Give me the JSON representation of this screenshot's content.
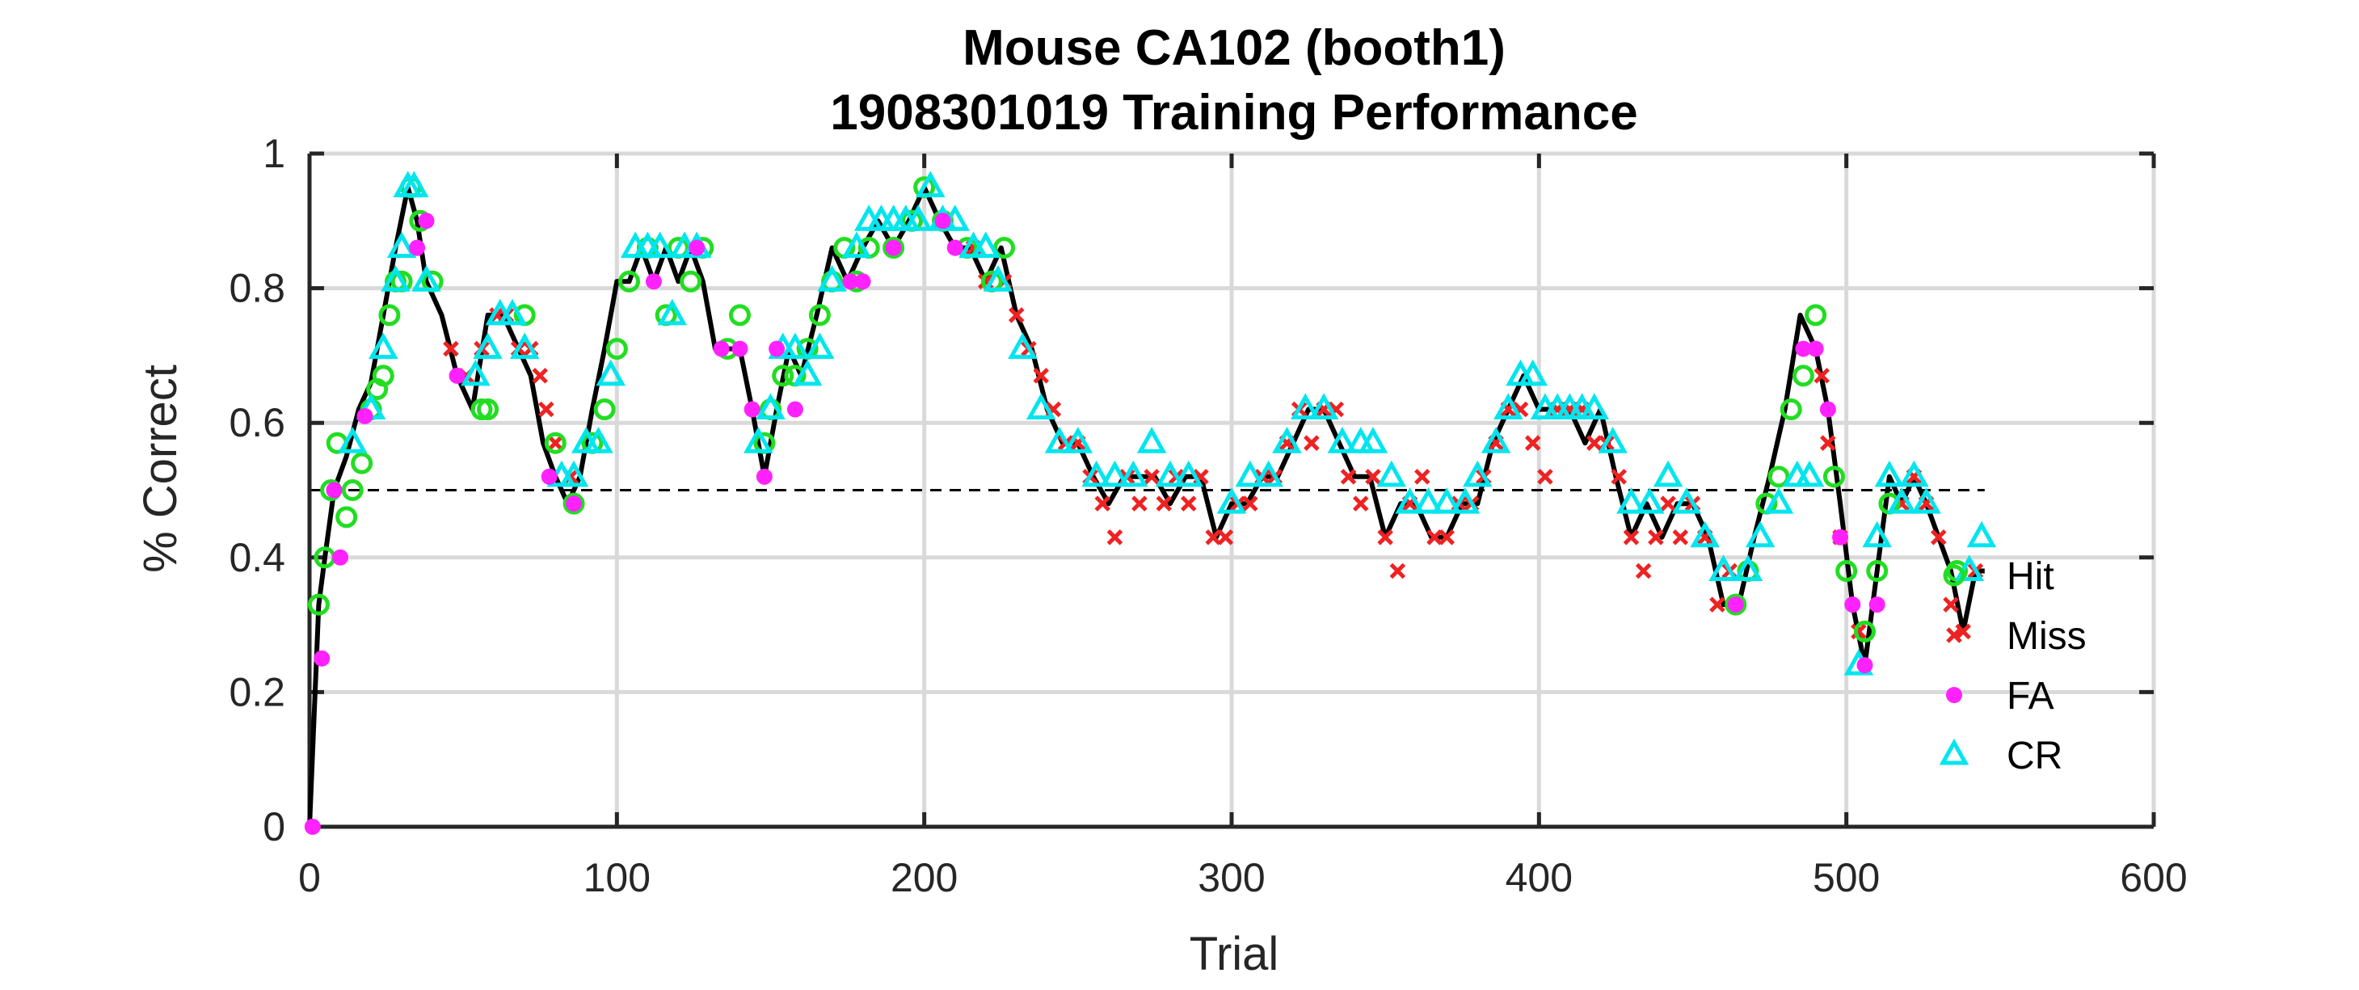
{
  "chart_data": {
    "type": "line",
    "title_lines": [
      "Mouse CA102 (booth1)",
      "1908301019 Training Performance"
    ],
    "xlabel": "Trial",
    "ylabel": "% Correct",
    "xlim": [
      0,
      600
    ],
    "ylim": [
      0,
      1
    ],
    "xticks": [
      0,
      100,
      200,
      300,
      400,
      500,
      600
    ],
    "yticks": [
      0,
      0.2,
      0.4,
      0.6,
      0.8,
      1
    ],
    "xtick_labels": [
      "0",
      "100",
      "200",
      "300",
      "400",
      "500",
      "600"
    ],
    "ytick_labels": [
      "0",
      "0.2",
      "0.4",
      "0.6",
      "0.8",
      "1"
    ],
    "grid": true,
    "reference_line": {
      "y": 0.5,
      "x_range": [
        0,
        545
      ],
      "style": "dashed"
    },
    "legend": {
      "placement": "right",
      "entries": [
        "Hit",
        "Miss",
        "FA",
        "CR"
      ]
    },
    "colors": {
      "line": "#000000",
      "Hit": "#22dd22",
      "Miss": "#ee2222",
      "FA": "#ff22ff",
      "CR": "#00e5ee",
      "grid": "#d9d9d9",
      "axis": "#262626"
    },
    "curve": {
      "x": [
        0,
        3,
        5,
        8,
        12,
        16,
        20,
        24,
        28,
        32,
        35,
        38,
        43,
        48,
        53,
        58,
        63,
        68,
        72,
        76,
        80,
        84,
        88,
        92,
        96,
        100,
        104,
        108,
        112,
        116,
        120,
        124,
        128,
        132,
        136,
        140,
        144,
        148,
        152,
        156,
        160,
        165,
        170,
        175,
        180,
        185,
        190,
        195,
        200,
        205,
        210,
        215,
        220,
        225,
        230,
        235,
        240,
        245,
        250,
        255,
        260,
        265,
        270,
        275,
        280,
        285,
        290,
        295,
        300,
        305,
        310,
        315,
        320,
        325,
        330,
        335,
        340,
        345,
        350,
        355,
        360,
        365,
        370,
        375,
        380,
        385,
        390,
        395,
        400,
        405,
        410,
        415,
        420,
        425,
        430,
        435,
        440,
        445,
        450,
        455,
        460,
        465,
        470,
        475,
        480,
        485,
        490,
        494,
        498,
        502,
        506,
        510,
        514,
        518,
        522,
        526,
        530,
        534,
        538,
        542,
        545
      ],
      "y": [
        0,
        0.33,
        0.4,
        0.5,
        0.55,
        0.62,
        0.66,
        0.76,
        0.86,
        0.95,
        0.9,
        0.81,
        0.76,
        0.67,
        0.62,
        0.76,
        0.76,
        0.71,
        0.67,
        0.57,
        0.52,
        0.48,
        0.52,
        0.62,
        0.71,
        0.81,
        0.81,
        0.86,
        0.81,
        0.86,
        0.81,
        0.86,
        0.81,
        0.71,
        0.71,
        0.71,
        0.62,
        0.52,
        0.62,
        0.71,
        0.67,
        0.76,
        0.86,
        0.81,
        0.86,
        0.9,
        0.86,
        0.9,
        0.95,
        0.9,
        0.86,
        0.86,
        0.81,
        0.86,
        0.76,
        0.71,
        0.62,
        0.57,
        0.57,
        0.52,
        0.48,
        0.52,
        0.52,
        0.52,
        0.48,
        0.52,
        0.52,
        0.43,
        0.48,
        0.48,
        0.52,
        0.52,
        0.57,
        0.62,
        0.62,
        0.57,
        0.52,
        0.52,
        0.43,
        0.48,
        0.48,
        0.43,
        0.43,
        0.48,
        0.48,
        0.57,
        0.62,
        0.67,
        0.62,
        0.62,
        0.62,
        0.57,
        0.62,
        0.52,
        0.43,
        0.48,
        0.43,
        0.48,
        0.48,
        0.43,
        0.33,
        0.33,
        0.43,
        0.52,
        0.62,
        0.76,
        0.71,
        0.62,
        0.48,
        0.33,
        0.24,
        0.38,
        0.52,
        0.48,
        0.52,
        0.48,
        0.43,
        0.38,
        0.29,
        0.38,
        0.38
      ]
    },
    "series": [
      {
        "name": "Hit",
        "marker": "circle-open",
        "x": [
          3,
          5,
          7,
          9,
          12,
          14,
          17,
          20,
          22,
          24,
          26,
          28,
          30,
          33,
          36,
          40,
          56,
          58,
          70,
          80,
          86,
          92,
          96,
          100,
          104,
          110,
          116,
          120,
          124,
          128,
          136,
          140,
          148,
          150,
          154,
          158,
          162,
          166,
          170,
          174,
          178,
          182,
          190,
          196,
          200,
          206,
          214,
          222,
          226,
          464,
          468,
          474,
          478,
          482,
          486,
          490,
          496,
          500,
          506,
          510,
          514,
          536
        ],
        "y": [
          0.33,
          0.4,
          0.5,
          0.57,
          0.46,
          0.5,
          0.54,
          0.62,
          0.65,
          0.67,
          0.76,
          0.81,
          0.81,
          0.95,
          0.9,
          0.81,
          0.62,
          0.62,
          0.76,
          0.57,
          0.48,
          0.57,
          0.62,
          0.71,
          0.81,
          0.86,
          0.76,
          0.86,
          0.81,
          0.86,
          0.71,
          0.76,
          0.57,
          0.62,
          0.67,
          0.67,
          0.71,
          0.76,
          0.81,
          0.86,
          0.81,
          0.86,
          0.86,
          0.9,
          0.95,
          0.9,
          0.86,
          0.81,
          0.86,
          0.33,
          0.38,
          0.48,
          0.52,
          0.62,
          0.67,
          0.76,
          0.52,
          0.38,
          0.29,
          0.38,
          0.48,
          0.38
        ]
      },
      {
        "name": "Miss",
        "marker": "x",
        "x": [
          46,
          51,
          56,
          61,
          64,
          68,
          72,
          75,
          77,
          80,
          85,
          216,
          220,
          226,
          230,
          234,
          238,
          242,
          246,
          250,
          254,
          258,
          262,
          266,
          270,
          274,
          278,
          282,
          286,
          290,
          294,
          298,
          302,
          306,
          310,
          314,
          318,
          322,
          326,
          330,
          334,
          338,
          342,
          346,
          350,
          354,
          358,
          362,
          366,
          370,
          374,
          378,
          382,
          386,
          390,
          394,
          398,
          402,
          406,
          410,
          414,
          418,
          422,
          426,
          430,
          434,
          438,
          442,
          446,
          450,
          454,
          458,
          462,
          492,
          494,
          498,
          504,
          518,
          522,
          526,
          530,
          534,
          538,
          542
        ],
        "y": [
          0.71,
          0.67,
          0.71,
          0.76,
          0.76,
          0.71,
          0.71,
          0.67,
          0.62,
          0.57,
          0.52,
          0.86,
          0.81,
          0.81,
          0.76,
          0.71,
          0.67,
          0.62,
          0.57,
          0.57,
          0.52,
          0.48,
          0.43,
          0.52,
          0.48,
          0.52,
          0.48,
          0.52,
          0.48,
          0.52,
          0.43,
          0.43,
          0.48,
          0.48,
          0.52,
          0.52,
          0.57,
          0.62,
          0.57,
          0.62,
          0.62,
          0.52,
          0.48,
          0.52,
          0.43,
          0.38,
          0.48,
          0.52,
          0.43,
          0.43,
          0.48,
          0.48,
          0.52,
          0.57,
          0.62,
          0.62,
          0.57,
          0.52,
          0.62,
          0.62,
          0.62,
          0.57,
          0.57,
          0.52,
          0.43,
          0.38,
          0.43,
          0.48,
          0.43,
          0.48,
          0.43,
          0.33,
          0.38,
          0.67,
          0.57,
          0.43,
          0.29,
          0.48,
          0.52,
          0.48,
          0.43,
          0.33,
          0.29,
          0.38
        ]
      },
      {
        "name": "FA",
        "marker": "dot",
        "x": [
          1,
          4,
          8,
          10,
          18,
          35,
          38,
          48,
          78,
          86,
          112,
          126,
          134,
          140,
          144,
          148,
          152,
          158,
          176,
          180,
          190,
          206,
          210,
          464,
          486,
          490,
          494,
          498,
          502,
          506,
          510
        ],
        "y": [
          0,
          0.25,
          0.5,
          0.4,
          0.61,
          0.86,
          0.9,
          0.67,
          0.52,
          0.48,
          0.81,
          0.86,
          0.71,
          0.71,
          0.62,
          0.52,
          0.71,
          0.62,
          0.81,
          0.81,
          0.86,
          0.9,
          0.86,
          0.33,
          0.71,
          0.71,
          0.62,
          0.43,
          0.33,
          0.24,
          0.33
        ]
      },
      {
        "name": "CR",
        "marker": "triangle-open",
        "x": [
          14,
          20,
          24,
          28,
          30,
          32,
          34,
          38,
          54,
          58,
          62,
          66,
          70,
          82,
          86,
          90,
          94,
          98,
          106,
          110,
          114,
          118,
          122,
          126,
          146,
          150,
          154,
          158,
          162,
          166,
          170,
          178,
          182,
          186,
          190,
          194,
          198,
          202,
          206,
          210,
          216,
          220,
          224,
          232,
          238,
          244,
          250,
          256,
          262,
          268,
          274,
          280,
          286,
          300,
          306,
          312,
          318,
          324,
          330,
          336,
          342,
          346,
          352,
          358,
          364,
          370,
          376,
          380,
          386,
          390,
          394,
          398,
          402,
          406,
          410,
          414,
          418,
          424,
          430,
          436,
          442,
          448,
          454,
          460,
          468,
          472,
          478,
          484,
          488,
          504,
          510,
          514,
          518,
          522,
          526,
          540,
          544
        ],
        "y": [
          0.57,
          0.62,
          0.71,
          0.81,
          0.86,
          0.95,
          0.95,
          0.81,
          0.67,
          0.71,
          0.76,
          0.76,
          0.71,
          0.52,
          0.52,
          0.57,
          0.57,
          0.67,
          0.86,
          0.86,
          0.86,
          0.76,
          0.86,
          0.86,
          0.57,
          0.62,
          0.71,
          0.71,
          0.67,
          0.71,
          0.81,
          0.86,
          0.9,
          0.9,
          0.9,
          0.9,
          0.9,
          0.95,
          0.9,
          0.9,
          0.86,
          0.86,
          0.81,
          0.71,
          0.62,
          0.57,
          0.57,
          0.52,
          0.52,
          0.52,
          0.57,
          0.52,
          0.52,
          0.48,
          0.52,
          0.52,
          0.57,
          0.62,
          0.62,
          0.57,
          0.57,
          0.57,
          0.52,
          0.48,
          0.48,
          0.48,
          0.48,
          0.52,
          0.57,
          0.62,
          0.67,
          0.67,
          0.62,
          0.62,
          0.62,
          0.62,
          0.62,
          0.57,
          0.48,
          0.48,
          0.52,
          0.48,
          0.43,
          0.38,
          0.38,
          0.43,
          0.48,
          0.52,
          0.52,
          0.24,
          0.43,
          0.52,
          0.48,
          0.52,
          0.48,
          0.38,
          0.43
        ]
      }
    ]
  }
}
